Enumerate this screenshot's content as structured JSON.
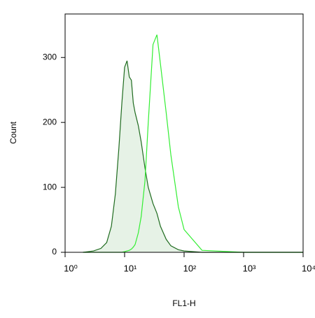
{
  "chart_data": {
    "type": "line",
    "x_label": "FL1-H",
    "y_label": "Count",
    "x": [
      2,
      3,
      4,
      5,
      6,
      7,
      8,
      9,
      10,
      11,
      12,
      13,
      14,
      15,
      17,
      19,
      22,
      25,
      30,
      35,
      40,
      50,
      60,
      80,
      100,
      200,
      1000,
      10000
    ],
    "series": [
      {
        "color": "#1f6b1f",
        "fill": "#e6f2e6",
        "values": [
          0,
          2,
          6,
          15,
          40,
          90,
          160,
          230,
          285,
          295,
          270,
          265,
          230,
          215,
          195,
          170,
          130,
          100,
          75,
          60,
          40,
          20,
          10,
          4,
          2,
          0,
          0,
          0
        ]
      },
      {
        "color": "#33ee33",
        "values": [
          0,
          0,
          0,
          0,
          0,
          0,
          0,
          0,
          1,
          2,
          3,
          5,
          8,
          12,
          30,
          55,
          110,
          200,
          320,
          335,
          290,
          215,
          150,
          70,
          35,
          3,
          0,
          0
        ]
      }
    ],
    "xlog": true,
    "xlim": [
      1,
      10000
    ],
    "xticks": [
      {
        "value": 1,
        "label": "10⁰"
      },
      {
        "value": 10,
        "label": "10¹"
      },
      {
        "value": 100,
        "label": "10²"
      },
      {
        "value": 1000,
        "label": "10³"
      },
      {
        "value": 10000,
        "label": "10⁴"
      }
    ],
    "ylim": [
      0,
      367
    ],
    "yticks": [
      0,
      100,
      200,
      300
    ]
  }
}
